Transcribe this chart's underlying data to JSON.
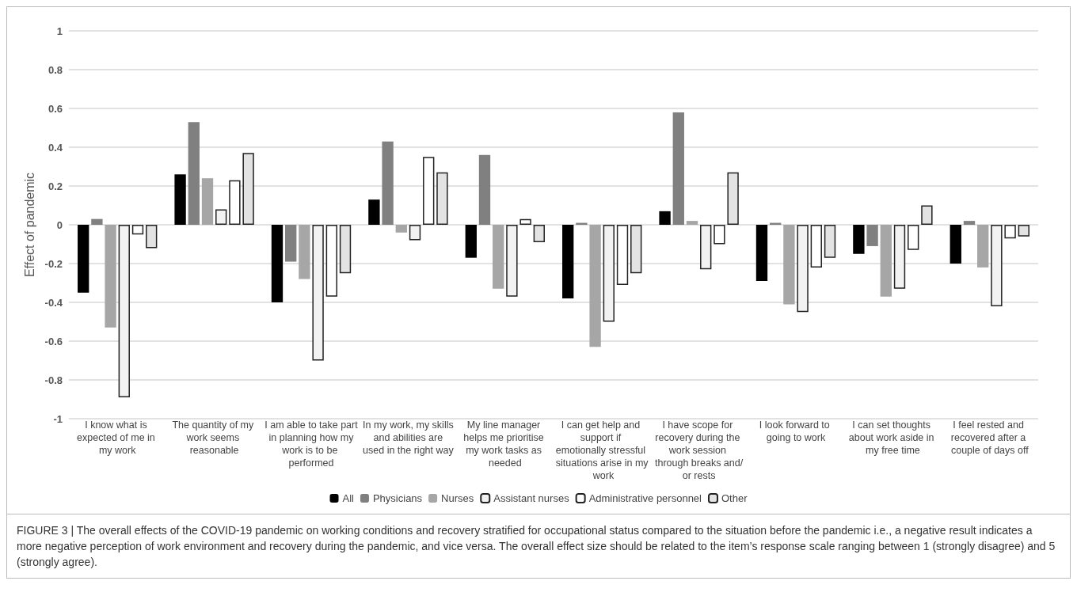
{
  "chart_data": {
    "type": "bar",
    "ylabel": "Effect of pandemic",
    "categories": [
      "I know what is expected of me in my work",
      "The quantity of my work seems reasonable",
      "I am able to take part in planning how my work is to be performed",
      "In my work, my skills and abilities are used in the right way",
      "My line manager helps me prioritise my work tasks as needed",
      "I can get help and support if emotionally stressful situations arise in my work",
      "I have scope for recovery during the work session through breaks and/or rests",
      "I look forward to going to work",
      "I can set thoughts about work aside in my free time",
      "I feel rested and recovered after a couple of days off"
    ],
    "series": [
      {
        "name": "All",
        "color": "#000000",
        "values": [
          -0.35,
          0.26,
          -0.4,
          0.13,
          -0.17,
          -0.38,
          0.07,
          -0.29,
          -0.15,
          -0.2
        ]
      },
      {
        "name": "Physicians",
        "color": "#808080",
        "values": [
          0.03,
          0.53,
          -0.19,
          0.43,
          0.36,
          0.01,
          0.58,
          0.01,
          -0.11,
          0.02
        ]
      },
      {
        "name": "Nurses",
        "color": "#a6a6a6",
        "values": [
          -0.53,
          0.24,
          -0.28,
          -0.04,
          -0.33,
          -0.63,
          0.02,
          -0.41,
          -0.37,
          -0.22
        ]
      },
      {
        "name": "Assistant nurses",
        "color": "#f2f2f2",
        "values": [
          -0.89,
          0.08,
          -0.7,
          -0.08,
          -0.37,
          -0.5,
          -0.23,
          -0.45,
          -0.33,
          -0.42
        ]
      },
      {
        "name": "Administrative personnel",
        "color": "#ffffff",
        "values": [
          -0.05,
          0.23,
          -0.37,
          0.35,
          0.03,
          -0.31,
          -0.1,
          -0.22,
          -0.13,
          -0.07
        ]
      },
      {
        "name": "Other",
        "color": "#e3e3e3",
        "values": [
          -0.12,
          0.37,
          -0.25,
          0.27,
          -0.09,
          -0.25,
          0.27,
          -0.17,
          0.1,
          -0.06
        ]
      }
    ],
    "ylim": [
      -1,
      1
    ],
    "yticks": [
      -1,
      -0.8,
      -0.6,
      -0.4,
      -0.2,
      0,
      0.2,
      0.4,
      0.6,
      0.8,
      1
    ],
    "grid": "y",
    "legend": "bottom",
    "annotations": [
      "FIGURE 3 | The overall effects of the COVID-19 pandemic on working conditions and recovery stratified for occupational status compared to the situation before the pandemic i.e., a negative result indicates a more negative perception of work environment and recovery during the pandemic, and vice versa. The overall effect size should be related to the item’s response scale ranging between 1 (strongly disagree) and 5 (strongly agree)."
    ]
  }
}
